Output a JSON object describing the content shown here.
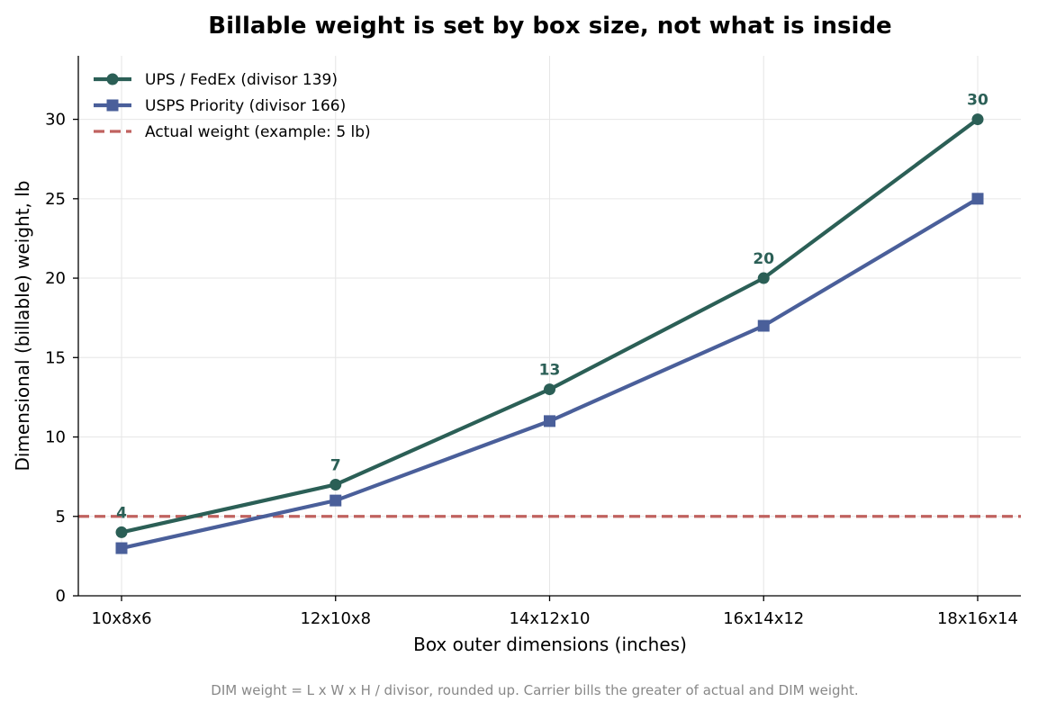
{
  "chart_data": {
    "type": "line",
    "title": "Billable weight is set by box size, not what is inside",
    "xlabel": "Box outer dimensions (inches)",
    "ylabel": "Dimensional (billable) weight, lb",
    "categories": [
      "10x8x6",
      "12x10x8",
      "14x12x10",
      "16x14x12",
      "18x16x14"
    ],
    "ylim": [
      0,
      34
    ],
    "yticks": [
      0,
      5,
      10,
      15,
      20,
      25,
      30
    ],
    "grid": true,
    "legend_position": "top-left",
    "series": [
      {
        "name": "UPS / FedEx (divisor 139)",
        "values": [
          4,
          7,
          13,
          20,
          30
        ],
        "color": "#2b5f56",
        "marker": "circle",
        "data_labels": [
          "4",
          "7",
          "13",
          "20",
          "30"
        ]
      },
      {
        "name": "USPS Priority (divisor 166)",
        "values": [
          3,
          6,
          11,
          17,
          25
        ],
        "color": "#4a5f9a",
        "marker": "square"
      }
    ],
    "reference_line": {
      "name": "Actual weight (example: 5 lb)",
      "value": 5,
      "color": "#c0625f",
      "style": "dashed"
    },
    "footnote": "DIM weight = L x W x H / divisor, rounded up. Carrier bills the greater of actual and DIM weight."
  }
}
